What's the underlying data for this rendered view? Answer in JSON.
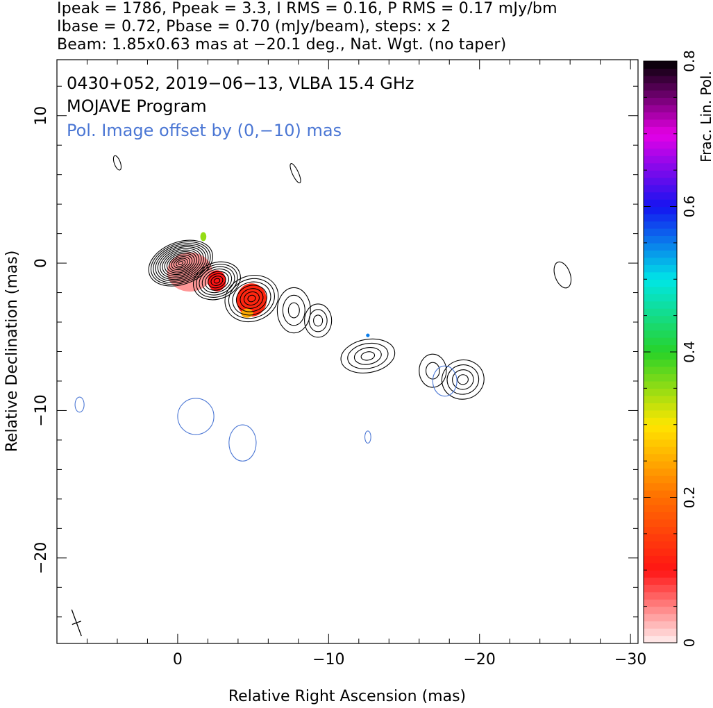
{
  "header": {
    "line1": "Ipeak = 1786, Ppeak = 3.3, I RMS = 0.16, P RMS = 0.17 mJy/bm",
    "line2": "Ibase = 0.72, Pbase = 0.70 (mJy/beam), steps: x 2",
    "line3": "Beam: 1.85x0.63 mas at −20.1 deg., Nat. Wgt. (no taper)"
  },
  "chart_data": {
    "type": "contour",
    "annotations": {
      "source": "0430+052, 2019−06−13, VLBA 15.4 GHz",
      "program": "MOJAVE Program",
      "pol_offset": "Pol. Image offset by (0,−10) mas"
    },
    "xlabel": "Relative Right Ascension (mas)",
    "ylabel": "Relative Declination (mas)",
    "xlim": [
      8,
      -30.5
    ],
    "ylim": [
      -25.8,
      13.8
    ],
    "x_ticks": [
      {
        "value": 0,
        "label": "0"
      },
      {
        "value": -10,
        "label": "−10"
      },
      {
        "value": -20,
        "label": "−20"
      },
      {
        "value": -30,
        "label": "−30"
      }
    ],
    "y_ticks": [
      {
        "value": 10,
        "label": "10"
      },
      {
        "value": 0,
        "label": "0"
      },
      {
        "value": -10,
        "label": "−10"
      },
      {
        "value": -20,
        "label": "−20"
      }
    ],
    "colorbar": {
      "label": "Frac. Lin. Pol.",
      "range": [
        0,
        0.8
      ],
      "ticks": [
        {
          "value": 0,
          "label": "0"
        },
        {
          "value": 0.2,
          "label": "0.2"
        },
        {
          "value": 0.4,
          "label": "0.4"
        },
        {
          "value": 0.6,
          "label": "0.6"
        },
        {
          "value": 0.8,
          "label": "0.8"
        }
      ]
    },
    "total_intensity_components": [
      {
        "x": -0.2,
        "y": 0.0,
        "a": 2.2,
        "b": 1.4,
        "pa": -20.1,
        "levels": 14
      },
      {
        "x": -2.6,
        "y": -1.2,
        "a": 1.6,
        "b": 1.2,
        "pa": -20.1,
        "levels": 8
      },
      {
        "x": -4.9,
        "y": -2.4,
        "a": 1.8,
        "b": 1.5,
        "pa": -20.1,
        "levels": 7
      },
      {
        "x": -7.7,
        "y": -3.2,
        "a": 1.1,
        "b": 1.5,
        "pa": 0,
        "levels": 3
      },
      {
        "x": -9.3,
        "y": -3.9,
        "a": 0.9,
        "b": 1.1,
        "pa": 0,
        "levels": 3
      },
      {
        "x": -12.6,
        "y": -6.3,
        "a": 1.8,
        "b": 1.1,
        "pa": -10,
        "levels": 4
      },
      {
        "x": -16.9,
        "y": -7.3,
        "a": 0.9,
        "b": 1.1,
        "pa": 0,
        "levels": 2
      },
      {
        "x": -18.9,
        "y": -7.9,
        "a": 1.4,
        "b": 1.3,
        "pa": -10,
        "levels": 4
      },
      {
        "x": -25.5,
        "y": -0.8,
        "a": 0.5,
        "b": 0.9,
        "pa": -20,
        "levels": 1
      },
      {
        "x": -7.8,
        "y": 6.1,
        "a": 0.2,
        "b": 0.7,
        "pa": -25,
        "levels": 1
      },
      {
        "x": 4.0,
        "y": 6.8,
        "a": 0.2,
        "b": 0.5,
        "pa": -20,
        "levels": 1
      }
    ],
    "polarized_intensity_components": [
      {
        "x": -1.2,
        "y": -10.4,
        "a": 1.2,
        "b": 1.2,
        "pa": 0
      },
      {
        "x": -4.3,
        "y": -12.2,
        "a": 0.9,
        "b": 1.2,
        "pa": 0
      },
      {
        "x": 6.5,
        "y": -9.6,
        "a": 0.3,
        "b": 0.5,
        "pa": 0
      },
      {
        "x": -12.6,
        "y": -11.8,
        "a": 0.2,
        "b": 0.4,
        "pa": 0
      },
      {
        "x": -17.7,
        "y": -8.0,
        "a": 0.8,
        "b": 1.0,
        "pa": 0
      }
    ],
    "frac_pol_regions": [
      {
        "x": -0.8,
        "y": -0.6,
        "rx": 1.5,
        "ry": 1.3,
        "value": 0.04
      },
      {
        "x": -2.6,
        "y": -1.2,
        "rx": 0.6,
        "ry": 0.7,
        "value": 0.1
      },
      {
        "x": -4.9,
        "y": -2.5,
        "rx": 1.0,
        "ry": 1.1,
        "value": 0.12
      },
      {
        "x": -4.6,
        "y": -3.4,
        "rx": 0.4,
        "ry": 0.3,
        "value": 0.25
      },
      {
        "x": -1.7,
        "y": 1.8,
        "rx": 0.2,
        "ry": 0.3,
        "value": 0.35
      },
      {
        "x": -12.6,
        "y": -4.9,
        "rx": 0.12,
        "ry": 0.12,
        "value": 0.55
      }
    ],
    "beam": {
      "major": 1.85,
      "minor": 0.63,
      "pa": -20.1,
      "x": 6.7,
      "y": -24.4
    }
  }
}
